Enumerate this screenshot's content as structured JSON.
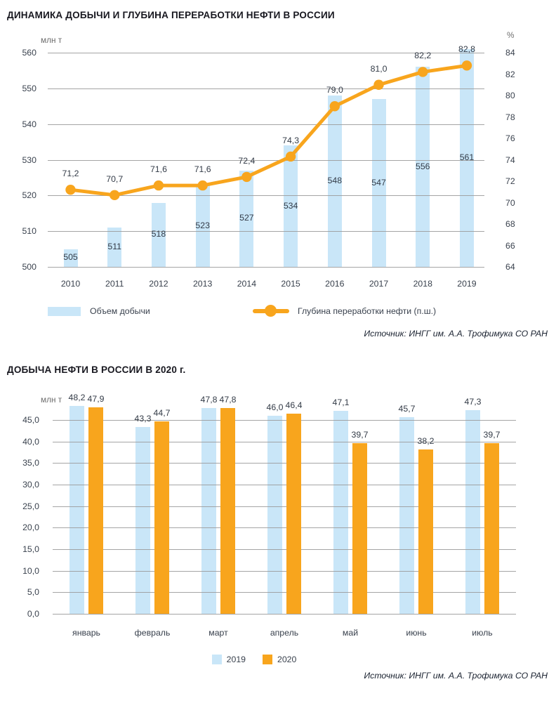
{
  "page": {
    "background": "#ffffff"
  },
  "colors": {
    "bar_blue": "#C9E6F8",
    "accent_orange": "#F8A51D",
    "gridline": "#9B9B9B"
  },
  "chart_data": [
    {
      "type": "bar+line",
      "title": "ДИНАМИКА ДОБЫЧИ И ГЛУБИНА ПЕРЕРАБОТКИ НЕФТИ В РОССИИ",
      "categories": [
        "2010",
        "2011",
        "2012",
        "2013",
        "2014",
        "2015",
        "2016",
        "2017",
        "2018",
        "2019"
      ],
      "series": [
        {
          "name": "Объем добычи",
          "kind": "bar",
          "axis": "left",
          "color": "#C9E6F8",
          "values": [
            505,
            511,
            518,
            523,
            527,
            534,
            548,
            547,
            556,
            561
          ],
          "labels": [
            "505",
            "511",
            "518",
            "523",
            "527",
            "534",
            "548",
            "547",
            "556",
            "561"
          ]
        },
        {
          "name": "Глубина переработки нефти (п.ш.)",
          "kind": "line",
          "axis": "right",
          "color": "#F8A51D",
          "values": [
            71.2,
            70.7,
            71.6,
            71.6,
            72.4,
            74.3,
            79.0,
            81.0,
            82.2,
            82.8
          ],
          "labels": [
            "71,2",
            "70,7",
            "71,6",
            "71,6",
            "72,4",
            "74,3",
            "79,0",
            "81,0",
            "82,2",
            "82,8"
          ]
        }
      ],
      "left_axis": {
        "unit": "млн т",
        "min": 500,
        "max": 560,
        "step": 10,
        "ticks": [
          "560",
          "550",
          "540",
          "530",
          "520",
          "510",
          "500"
        ]
      },
      "right_axis": {
        "unit": "%",
        "min": 64,
        "max": 84,
        "step": 2,
        "ticks": [
          "84",
          "82",
          "80",
          "78",
          "76",
          "74",
          "72",
          "70",
          "68",
          "66",
          "64"
        ]
      },
      "grid": true,
      "legend_position": "bottom",
      "source": "Источник: ИНГГ им. А.А. Трофимука СО РАН"
    },
    {
      "type": "bar",
      "title": "ДОБЫЧА НЕФТИ В РОССИИ В 2020 г.",
      "categories": [
        "январь",
        "февраль",
        "март",
        "апрель",
        "май",
        "июнь",
        "июль"
      ],
      "series": [
        {
          "name": "2019",
          "color": "#C9E6F8",
          "values": [
            48.2,
            43.3,
            47.8,
            46.0,
            47.1,
            45.7,
            47.3
          ],
          "labels": [
            "48,2",
            "43,3",
            "47,8",
            "46,0",
            "47,1",
            "45,7",
            "47,3"
          ]
        },
        {
          "name": "2020",
          "color": "#F8A51D",
          "values": [
            47.9,
            44.7,
            47.8,
            46.4,
            39.7,
            38.2,
            39.7
          ],
          "labels": [
            "47,9",
            "44,7",
            "47,8",
            "46,4",
            "39,7",
            "38,2",
            "39,7"
          ]
        }
      ],
      "y_axis": {
        "unit": "млн т",
        "min": 0,
        "max": 45,
        "step": 5,
        "ticks": [
          "45,0",
          "40,0",
          "35,0",
          "30,0",
          "25,0",
          "20,0",
          "15,0",
          "10,0",
          "5,0",
          "0,0"
        ]
      },
      "grid": true,
      "legend_position": "bottom",
      "source": "Источник: ИНГГ им. А.А. Трофимука СО РАН"
    }
  ]
}
